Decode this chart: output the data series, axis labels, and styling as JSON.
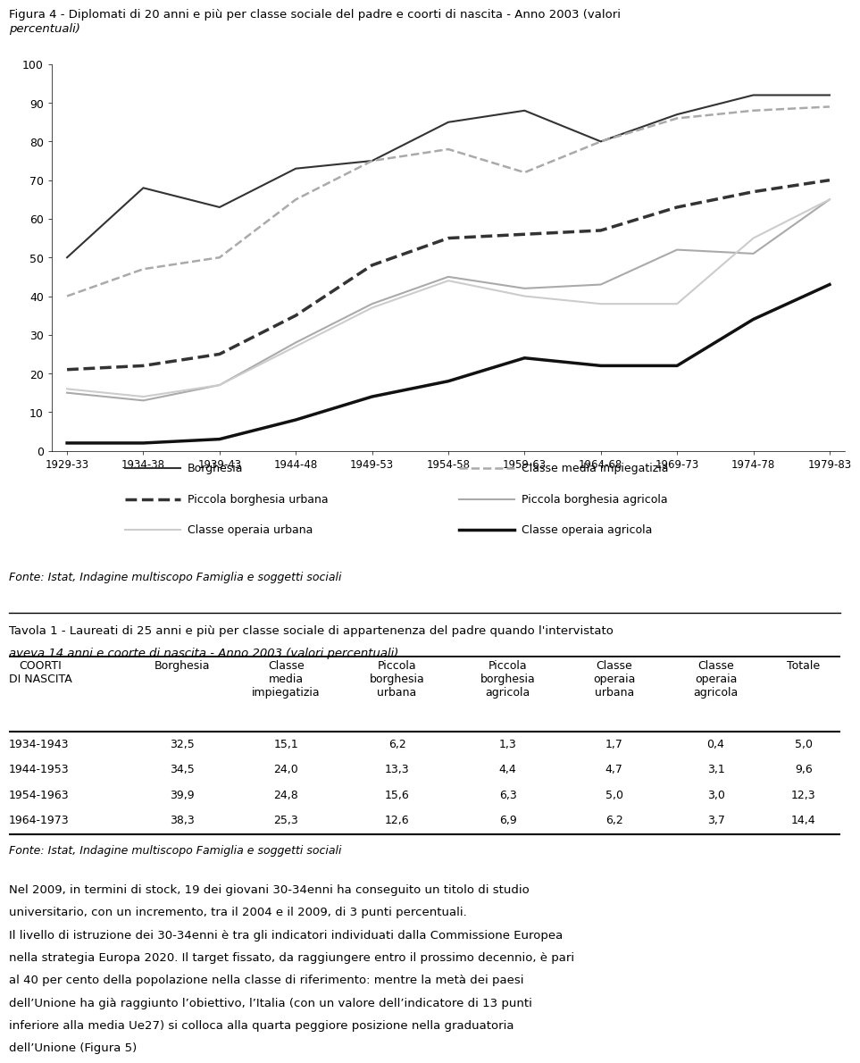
{
  "title_line1": "Figura 4 - Diplomati di 20 anni e più per classe sociale del padre e coorti di nascita - Anno 2003 (valori",
  "title_line2": "percentuali)",
  "x_labels": [
    "1929-33",
    "1934-38",
    "1939-43",
    "1944-48",
    "1949-53",
    "1954-58",
    "1959-63",
    "1964-68",
    "1969-73",
    "1974-78",
    "1979-83"
  ],
  "ylim": [
    0,
    100
  ],
  "yticks": [
    0,
    10,
    20,
    30,
    40,
    50,
    60,
    70,
    80,
    90,
    100
  ],
  "series": [
    {
      "name": "Borghesia",
      "values": [
        50,
        68,
        63,
        73,
        75,
        85,
        88,
        80,
        87,
        92,
        92
      ],
      "color": "#333333",
      "linestyle": "solid",
      "linewidth": 1.5,
      "legend_col": 0
    },
    {
      "name": "Classe media impiegatizia",
      "values": [
        40,
        47,
        50,
        65,
        75,
        78,
        72,
        80,
        86,
        88,
        89
      ],
      "color": "#aaaaaa",
      "linestyle": "dashed",
      "linewidth": 1.8,
      "legend_col": 1
    },
    {
      "name": "Piccola borghesia urbana",
      "values": [
        21,
        22,
        25,
        35,
        48,
        55,
        56,
        57,
        63,
        67,
        70
      ],
      "color": "#333333",
      "linestyle": "dashed",
      "linewidth": 2.5,
      "legend_col": 0
    },
    {
      "name": "Piccola borghesia agricola",
      "values": [
        15,
        13,
        17,
        28,
        38,
        45,
        42,
        43,
        52,
        51,
        65
      ],
      "color": "#aaaaaa",
      "linestyle": "solid",
      "linewidth": 1.5,
      "legend_col": 1
    },
    {
      "name": "Classe operaia urbana",
      "values": [
        16,
        14,
        17,
        27,
        37,
        44,
        40,
        38,
        38,
        55,
        65
      ],
      "color": "#cccccc",
      "linestyle": "solid",
      "linewidth": 1.5,
      "legend_col": 0
    },
    {
      "name": "Classe operaia agricola",
      "values": [
        2,
        2,
        3,
        8,
        14,
        18,
        24,
        22,
        22,
        34,
        43
      ],
      "color": "#111111",
      "linestyle": "solid",
      "linewidth": 2.5,
      "legend_col": 1
    }
  ],
  "legend_items_col0": [
    {
      "name": "Borghesia",
      "color": "#333333",
      "linestyle": "solid",
      "linewidth": 1.5
    },
    {
      "name": "Piccola borghesia urbana",
      "color": "#333333",
      "linestyle": "dashed",
      "linewidth": 2.5
    },
    {
      "name": "Classe operaia urbana",
      "color": "#cccccc",
      "linestyle": "solid",
      "linewidth": 1.5
    }
  ],
  "legend_items_col1": [
    {
      "name": "Classe media impiegatizia",
      "color": "#aaaaaa",
      "linestyle": "dashed",
      "linewidth": 1.8
    },
    {
      "name": "Piccola borghesia agricola",
      "color": "#aaaaaa",
      "linestyle": "solid",
      "linewidth": 1.5
    },
    {
      "name": "Classe operaia agricola",
      "color": "#111111",
      "linestyle": "solid",
      "linewidth": 2.5
    }
  ],
  "fonte_chart": "Fonte: Istat, Indagine multiscopo Famiglia e soggetti sociali",
  "tavola_title_line1": "Tavola 1 - Laureati di 25 anni e più per classe sociale di appartenenza del padre quando l'intervistato",
  "tavola_title_line2": "aveva 14 anni e coorte di nascita - Anno 2003 (valori percentuali)",
  "table_col_headers": [
    "COORTI\nDI NASCITA",
    "Borghesia",
    "Classe\nmedia\nimpiegatizia",
    "Piccola\nborghesia\nurbana",
    "Piccola\nborghesia\nagricola",
    "Classe\noperaia\nurbana",
    "Classe\noperaia\nagricola",
    "Totale"
  ],
  "table_rows": [
    [
      "1934-1943",
      "32,5",
      "15,1",
      "6,2",
      "1,3",
      "1,7",
      "0,4",
      "5,0"
    ],
    [
      "1944-1953",
      "34,5",
      "24,0",
      "13,3",
      "4,4",
      "4,7",
      "3,1",
      "9,6"
    ],
    [
      "1954-1963",
      "39,9",
      "24,8",
      "15,6",
      "6,3",
      "5,0",
      "3,0",
      "12,3"
    ],
    [
      "1964-1973",
      "38,3",
      "25,3",
      "12,6",
      "6,9",
      "6,2",
      "3,7",
      "14,4"
    ]
  ],
  "fonte_table": "Fonte: Istat, Indagine multiscopo Famiglia e soggetti sociali",
  "body_paragraphs": [
    "Nel 2009, in termini di stock, 19 dei giovani 30-34enni ha conseguito un titolo di studio universitario, con un incremento, tra il 2004 e il 2009, di 3 punti percentuali.",
    "Il livello di istruzione dei 30-34enni è tra gli indicatori individuati dalla Commissione Europea nella strategia Europa 2020. Il target fissato, da raggiungere entro il prossimo decennio, è pari al 40 per cento della popolazione nella classe di riferimento: mentre la metà dei paesi dell’Unione ha già raggiunto l’obiettivo, l’Italia (con un valore dell’indicatore di 13 punti inferiore alla media Ue27) si colloca alla quarta peggiore posizione nella graduatoria dell’Unione (Figura 5)"
  ]
}
